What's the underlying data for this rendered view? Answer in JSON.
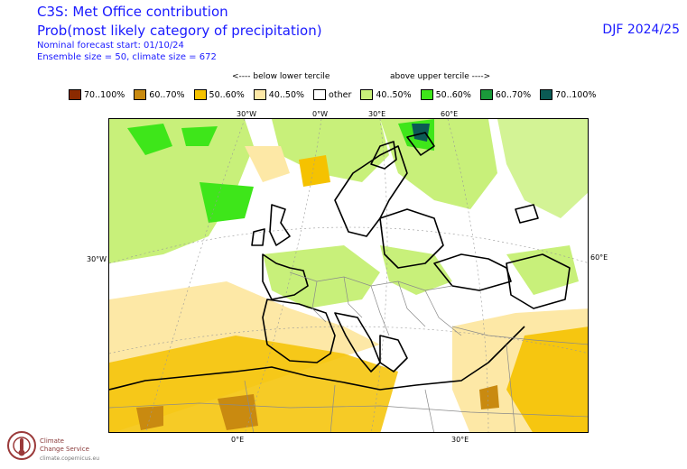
{
  "header": {
    "title": "C3S: Met Office contribution",
    "subtitle": "Prob(most likely category of precipitation)",
    "forecast_start": "Nominal forecast start: 01/10/24",
    "ensemble": "Ensemble size = 50, climate size = 672",
    "season": "DJF 2024/25"
  },
  "tercile": {
    "below": "<---- below lower tercile",
    "above": "above upper tercile ---->"
  },
  "legend": [
    {
      "label": "70..100%",
      "color": "#8b2a00"
    },
    {
      "label": "60..70%",
      "color": "#c98a10"
    },
    {
      "label": "50..60%",
      "color": "#f5c200"
    },
    {
      "label": "40..50%",
      "color": "#fde8a6"
    },
    {
      "label": "other",
      "color": "#ffffff"
    },
    {
      "label": "40..50%",
      "color": "#c8f07a"
    },
    {
      "label": "50..60%",
      "color": "#3ee61a"
    },
    {
      "label": "60..70%",
      "color": "#1a9a3a"
    },
    {
      "label": "70..100%",
      "color": "#0b5a55"
    }
  ],
  "map_labels": {
    "top": [
      "30°W",
      "0°W",
      "30°E",
      "60°E"
    ],
    "bottom": [
      "0°E",
      "30°E"
    ],
    "left": "30°W",
    "right": "60°E"
  },
  "logo": {
    "line1": "Climate",
    "line2": "Change Service",
    "url": "climate.copernicus.eu"
  }
}
